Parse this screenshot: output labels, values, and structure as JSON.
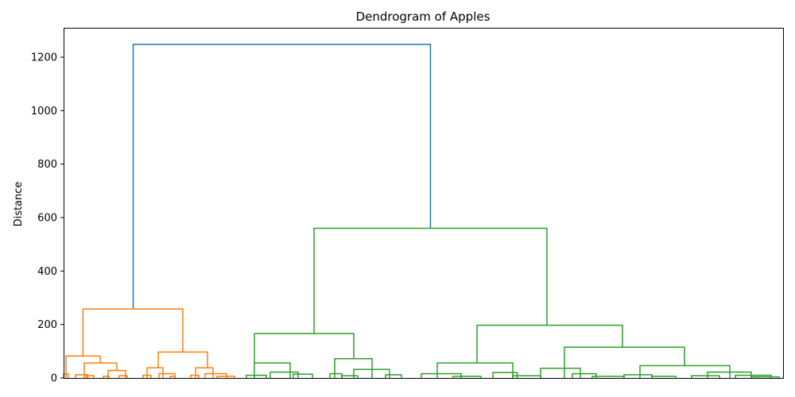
{
  "chart_data": {
    "type": "dendrogram",
    "title": "Dendrogram of Apples",
    "xlabel": "",
    "ylabel": "Distance",
    "ylim": [
      0,
      1310
    ],
    "yticks": [
      0,
      200,
      400,
      600,
      800,
      1000,
      1200
    ],
    "grid": false,
    "colors": {
      "root": "#1f77b4",
      "cluster_1": "#ff7f0e",
      "cluster_2": "#2ca02c"
    },
    "merges": [
      {
        "color": "root",
        "height": 1248,
        "children": [
          "cluster_1",
          "cluster_2"
        ]
      },
      {
        "color": "cluster_1",
        "height": 258
      },
      {
        "color": "cluster_1",
        "height": 82
      },
      {
        "color": "cluster_1",
        "height": 56
      },
      {
        "color": "cluster_1",
        "height": 28
      },
      {
        "color": "cluster_1",
        "height": 97
      },
      {
        "color": "cluster_1",
        "height": 38
      },
      {
        "color": "cluster_1",
        "height": 38
      },
      {
        "color": "cluster_2",
        "height": 560
      },
      {
        "color": "cluster_2",
        "height": 166
      },
      {
        "color": "cluster_2",
        "height": 56
      },
      {
        "color": "cluster_2",
        "height": 72
      },
      {
        "color": "cluster_2",
        "height": 197
      },
      {
        "color": "cluster_2",
        "height": 56
      },
      {
        "color": "cluster_2",
        "height": 115
      },
      {
        "color": "cluster_2",
        "height": 46
      }
    ]
  }
}
